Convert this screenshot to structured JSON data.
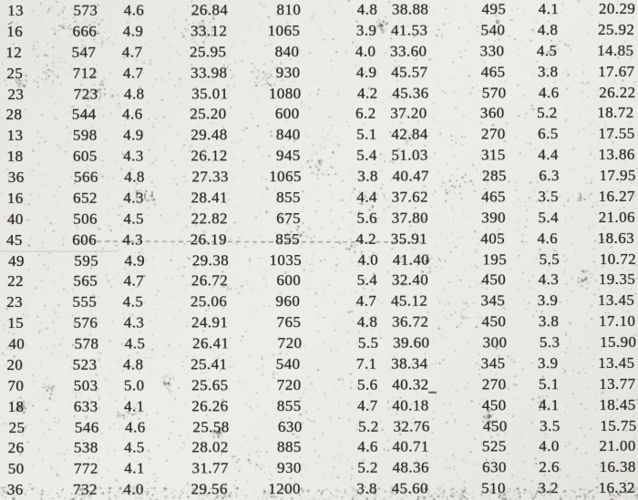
{
  "colors": {
    "paper": "#edece6",
    "ink": "#2e2b27",
    "speckle": "#3a372f"
  },
  "table": {
    "rows": [
      [
        "13",
        "573",
        "4.6",
        "26.84",
        "810",
        "4.8",
        "38.88",
        "495",
        "4.1",
        "20.29"
      ],
      [
        "16",
        "666",
        "4.9",
        "33.12",
        "1065",
        "3.9",
        "41.53",
        "540",
        "4.8",
        "25.92"
      ],
      [
        "12",
        "547",
        "4.7",
        "25.95",
        "840",
        "4.0",
        "33.60",
        "330",
        "4.5",
        "14.85"
      ],
      [
        "25",
        "712",
        "4.7",
        "33.98",
        "930",
        "4.9",
        "45.57",
        "465",
        "3.8",
        "17.67"
      ],
      [
        "23",
        "723",
        "4.8",
        "35.01",
        "1080",
        "4.2",
        "45.36",
        "570",
        "4.6",
        "26.22"
      ],
      [
        "28",
        "544",
        "4.6",
        "25.20",
        "600",
        "6.2",
        "37.20",
        "360",
        "5.2",
        "18.72"
      ],
      [
        "13",
        "598",
        "4.9",
        "29.48",
        "840",
        "5.1",
        "42.84",
        "270",
        "6.5",
        "17.55"
      ],
      [
        "18",
        "605",
        "4.3",
        "26.12",
        "945",
        "5.4",
        "51.03",
        "315",
        "4.4",
        "13.86"
      ],
      [
        "36",
        "566",
        "4.8",
        "27.33",
        "1065",
        "3.8",
        "40.47",
        "285",
        "6.3",
        "17.95"
      ],
      [
        "16",
        "652",
        "4.3",
        "28.41",
        "855",
        "4.4",
        "37.62",
        "465",
        "3.5",
        "16.27"
      ],
      [
        "40",
        "506",
        "4.5",
        "22.82",
        "675",
        "5.6",
        "37.80",
        "390",
        "5.4",
        "21.06"
      ],
      [
        "45",
        "606",
        "4.3",
        "26.19",
        "855",
        "4.2",
        "35.91",
        "405",
        "4.6",
        "18.63"
      ],
      [
        "49",
        "595",
        "4.9",
        "29.38",
        "1035",
        "4.0",
        "41.40",
        "195",
        "5.5",
        "10.72"
      ],
      [
        "22",
        "565",
        "4.7",
        "26.72",
        "600",
        "5.4",
        "32.40",
        "450",
        "4.3",
        "19.35"
      ],
      [
        "23",
        "555",
        "4.5",
        "25.06",
        "960",
        "4.7",
        "45.12",
        "345",
        "3.9",
        "13.45"
      ],
      [
        "15",
        "576",
        "4.3",
        "24.91",
        "765",
        "4.8",
        "36.72",
        "450",
        "3.8",
        "17.10"
      ],
      [
        "40",
        "578",
        "4.5",
        "26.41",
        "720",
        "5.5",
        "39.60",
        "300",
        "5.3",
        "15.90"
      ],
      [
        "20",
        "523",
        "4.8",
        "25.41",
        "540",
        "7.1",
        "38.34",
        "345",
        "3.9",
        "13.45"
      ],
      [
        "70",
        "503",
        "5.0",
        "25.65",
        "720",
        "5.6",
        "40.32",
        "270",
        "5.1",
        "13.77"
      ],
      [
        "18",
        "633",
        "4.1",
        "26.26",
        "855",
        "4.7",
        "40.18",
        "450",
        "4.1",
        "18.45"
      ],
      [
        "25",
        "546",
        "4.6",
        "25.58",
        "630",
        "5.2",
        "32.76",
        "450",
        "3.5",
        "15.75"
      ],
      [
        "26",
        "538",
        "4.5",
        "28.02",
        "885",
        "4.6",
        "40.71",
        "525",
        "4.0",
        "21.00"
      ],
      [
        "50",
        "772",
        "4.1",
        "31.77",
        "930",
        "5.2",
        "48.36",
        "630",
        "2.6",
        "16.38"
      ],
      [
        "36",
        "732",
        "4.0",
        "29.56",
        "1200",
        "3.8",
        "45.60",
        "510",
        "3.2",
        "16.32"
      ]
    ]
  }
}
